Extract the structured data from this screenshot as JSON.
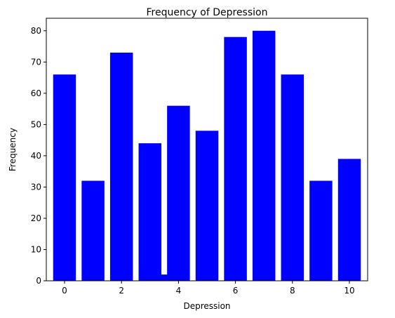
{
  "chart_data": {
    "type": "bar",
    "title": "Frequency of Depression",
    "xlabel": "Depression",
    "ylabel": "Frequency",
    "x": [
      0,
      1,
      2,
      3,
      3.5,
      4,
      5,
      6,
      7,
      8,
      9,
      10
    ],
    "values": [
      66,
      32,
      73,
      44,
      2,
      56,
      48,
      78,
      80,
      66,
      32,
      39
    ],
    "bar_width": [
      0.8,
      0.8,
      0.8,
      0.8,
      0.25,
      0.8,
      0.8,
      0.8,
      0.8,
      0.8,
      0.8,
      0.8
    ],
    "bar_color": "#0000ff",
    "xlim": [
      -0.64,
      10.64
    ],
    "ylim": [
      0,
      84
    ],
    "xticks": [
      0,
      2,
      4,
      6,
      8,
      10
    ],
    "yticks": [
      0,
      10,
      20,
      30,
      40,
      50,
      60,
      70,
      80
    ],
    "grid": false,
    "legend": "none"
  }
}
